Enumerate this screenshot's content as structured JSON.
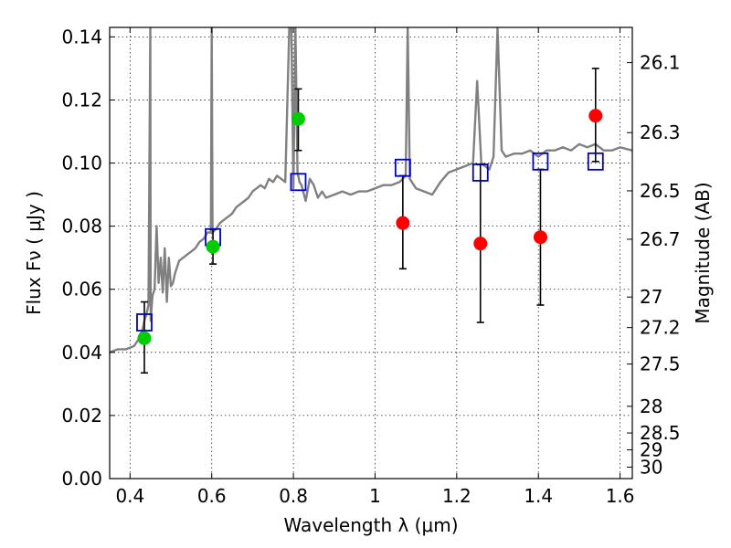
{
  "chart_data": {
    "type": "scatter",
    "xlabel": "Wavelength  λ (μm)",
    "ylabel": "Flux  Fν  ( μJy )",
    "ylabel_right": "Magnitude (AB)",
    "xlim": [
      0.35,
      1.63
    ],
    "ylim": [
      0.0,
      0.143
    ],
    "x_ticks": [
      0.4,
      0.6,
      0.8,
      1.0,
      1.2,
      1.4,
      1.6
    ],
    "x_tick_labels": [
      "0.4",
      "0.6",
      "0.8",
      "1",
      "1.2",
      "1.4",
      "1.6"
    ],
    "y_ticks": [
      0.0,
      0.02,
      0.04,
      0.06,
      0.08,
      0.1,
      0.12,
      0.14
    ],
    "y_tick_labels": [
      "0.00",
      "0.02",
      "0.04",
      "0.06",
      "0.08",
      "0.10",
      "0.12",
      "0.14"
    ],
    "right_ticks": [
      {
        "label": "26.1",
        "mag": 26.1
      },
      {
        "label": "26.3",
        "mag": 26.3
      },
      {
        "label": "26.5",
        "mag": 26.5
      },
      {
        "label": "26.7",
        "mag": 26.7
      },
      {
        "label": "27",
        "mag": 27.0
      },
      {
        "label": "27.2",
        "mag": 27.2
      },
      {
        "label": "27.5",
        "mag": 27.5
      },
      {
        "label": "28",
        "mag": 28.0
      },
      {
        "label": "28.5",
        "mag": 28.5
      },
      {
        "label": "29",
        "mag": 29.0
      },
      {
        "label": "30",
        "mag": 30.0
      }
    ],
    "grid": true,
    "series": [
      {
        "kind": "line",
        "color": "#808080",
        "x": [
          0.35,
          0.37,
          0.39,
          0.41,
          0.42,
          0.43,
          0.435,
          0.44,
          0.445,
          0.4495,
          0.4505,
          0.455,
          0.46,
          0.465,
          0.47,
          0.475,
          0.48,
          0.485,
          0.49,
          0.495,
          0.5,
          0.505,
          0.51,
          0.52,
          0.53,
          0.54,
          0.55,
          0.56,
          0.57,
          0.58,
          0.59,
          0.598,
          0.6,
          0.602,
          0.61,
          0.62,
          0.63,
          0.64,
          0.65,
          0.66,
          0.67,
          0.68,
          0.69,
          0.7,
          0.71,
          0.72,
          0.73,
          0.74,
          0.75,
          0.76,
          0.77,
          0.78,
          0.79,
          0.795,
          0.8,
          0.805,
          0.81,
          0.815,
          0.82,
          0.83,
          0.84,
          0.85,
          0.86,
          0.87,
          0.88,
          0.9,
          0.92,
          0.94,
          0.96,
          0.98,
          1.0,
          1.02,
          1.04,
          1.06,
          1.075,
          1.08,
          1.085,
          1.1,
          1.12,
          1.14,
          1.16,
          1.18,
          1.2,
          1.22,
          1.24,
          1.25,
          1.26,
          1.27,
          1.28,
          1.29,
          1.3,
          1.31,
          1.32,
          1.34,
          1.36,
          1.38,
          1.4,
          1.42,
          1.44,
          1.46,
          1.48,
          1.5,
          1.52,
          1.54,
          1.56,
          1.58,
          1.6,
          1.63
        ],
        "y": [
          0.04,
          0.041,
          0.041,
          0.042,
          0.044,
          0.047,
          0.05,
          0.052,
          0.055,
          0.143,
          0.05,
          0.058,
          0.06,
          0.08,
          0.062,
          0.07,
          0.059,
          0.073,
          0.056,
          0.07,
          0.061,
          0.062,
          0.065,
          0.069,
          0.07,
          0.071,
          0.072,
          0.073,
          0.075,
          0.076,
          0.078,
          0.078,
          0.143,
          0.078,
          0.079,
          0.081,
          0.082,
          0.083,
          0.084,
          0.086,
          0.087,
          0.088,
          0.089,
          0.091,
          0.092,
          0.093,
          0.092,
          0.095,
          0.094,
          0.096,
          0.095,
          0.094,
          0.143,
          0.143,
          0.092,
          0.143,
          0.097,
          0.094,
          0.093,
          0.088,
          0.095,
          0.093,
          0.089,
          0.091,
          0.089,
          0.09,
          0.091,
          0.09,
          0.091,
          0.091,
          0.092,
          0.093,
          0.093,
          0.094,
          0.096,
          0.143,
          0.095,
          0.092,
          0.091,
          0.09,
          0.094,
          0.097,
          0.098,
          0.099,
          0.1,
          0.126,
          0.1,
          0.099,
          0.098,
          0.102,
          0.143,
          0.104,
          0.102,
          0.103,
          0.103,
          0.104,
          0.102,
          0.104,
          0.104,
          0.105,
          0.104,
          0.106,
          0.105,
          0.106,
          0.104,
          0.104,
          0.105,
          0.104
        ]
      },
      {
        "kind": "markers",
        "marker": "square-open",
        "color": "#0000cc",
        "x": [
          0.435,
          0.603,
          0.812,
          1.068,
          1.258,
          1.405,
          1.54
        ],
        "y": [
          0.0495,
          0.0765,
          0.094,
          0.0985,
          0.097,
          0.1005,
          0.1005
        ]
      },
      {
        "kind": "markers",
        "marker": "circle",
        "color": "#00cc00",
        "x": [
          0.435,
          0.603,
          0.812
        ],
        "y": [
          0.0445,
          0.0735,
          0.114
        ],
        "yerr_low": [
          0.0335,
          0.068,
          0.104
        ],
        "yerr_high": [
          0.056,
          0.079,
          0.1235
        ]
      },
      {
        "kind": "markers",
        "marker": "circle",
        "color": "#ff0000",
        "x": [
          1.068,
          1.258,
          1.405,
          1.54
        ],
        "y": [
          0.081,
          0.0745,
          0.0765,
          0.115
        ],
        "yerr_low": [
          0.0665,
          0.0495,
          0.055,
          0.1005
        ],
        "yerr_high": [
          0.096,
          0.0995,
          0.098,
          0.13
        ]
      }
    ]
  }
}
